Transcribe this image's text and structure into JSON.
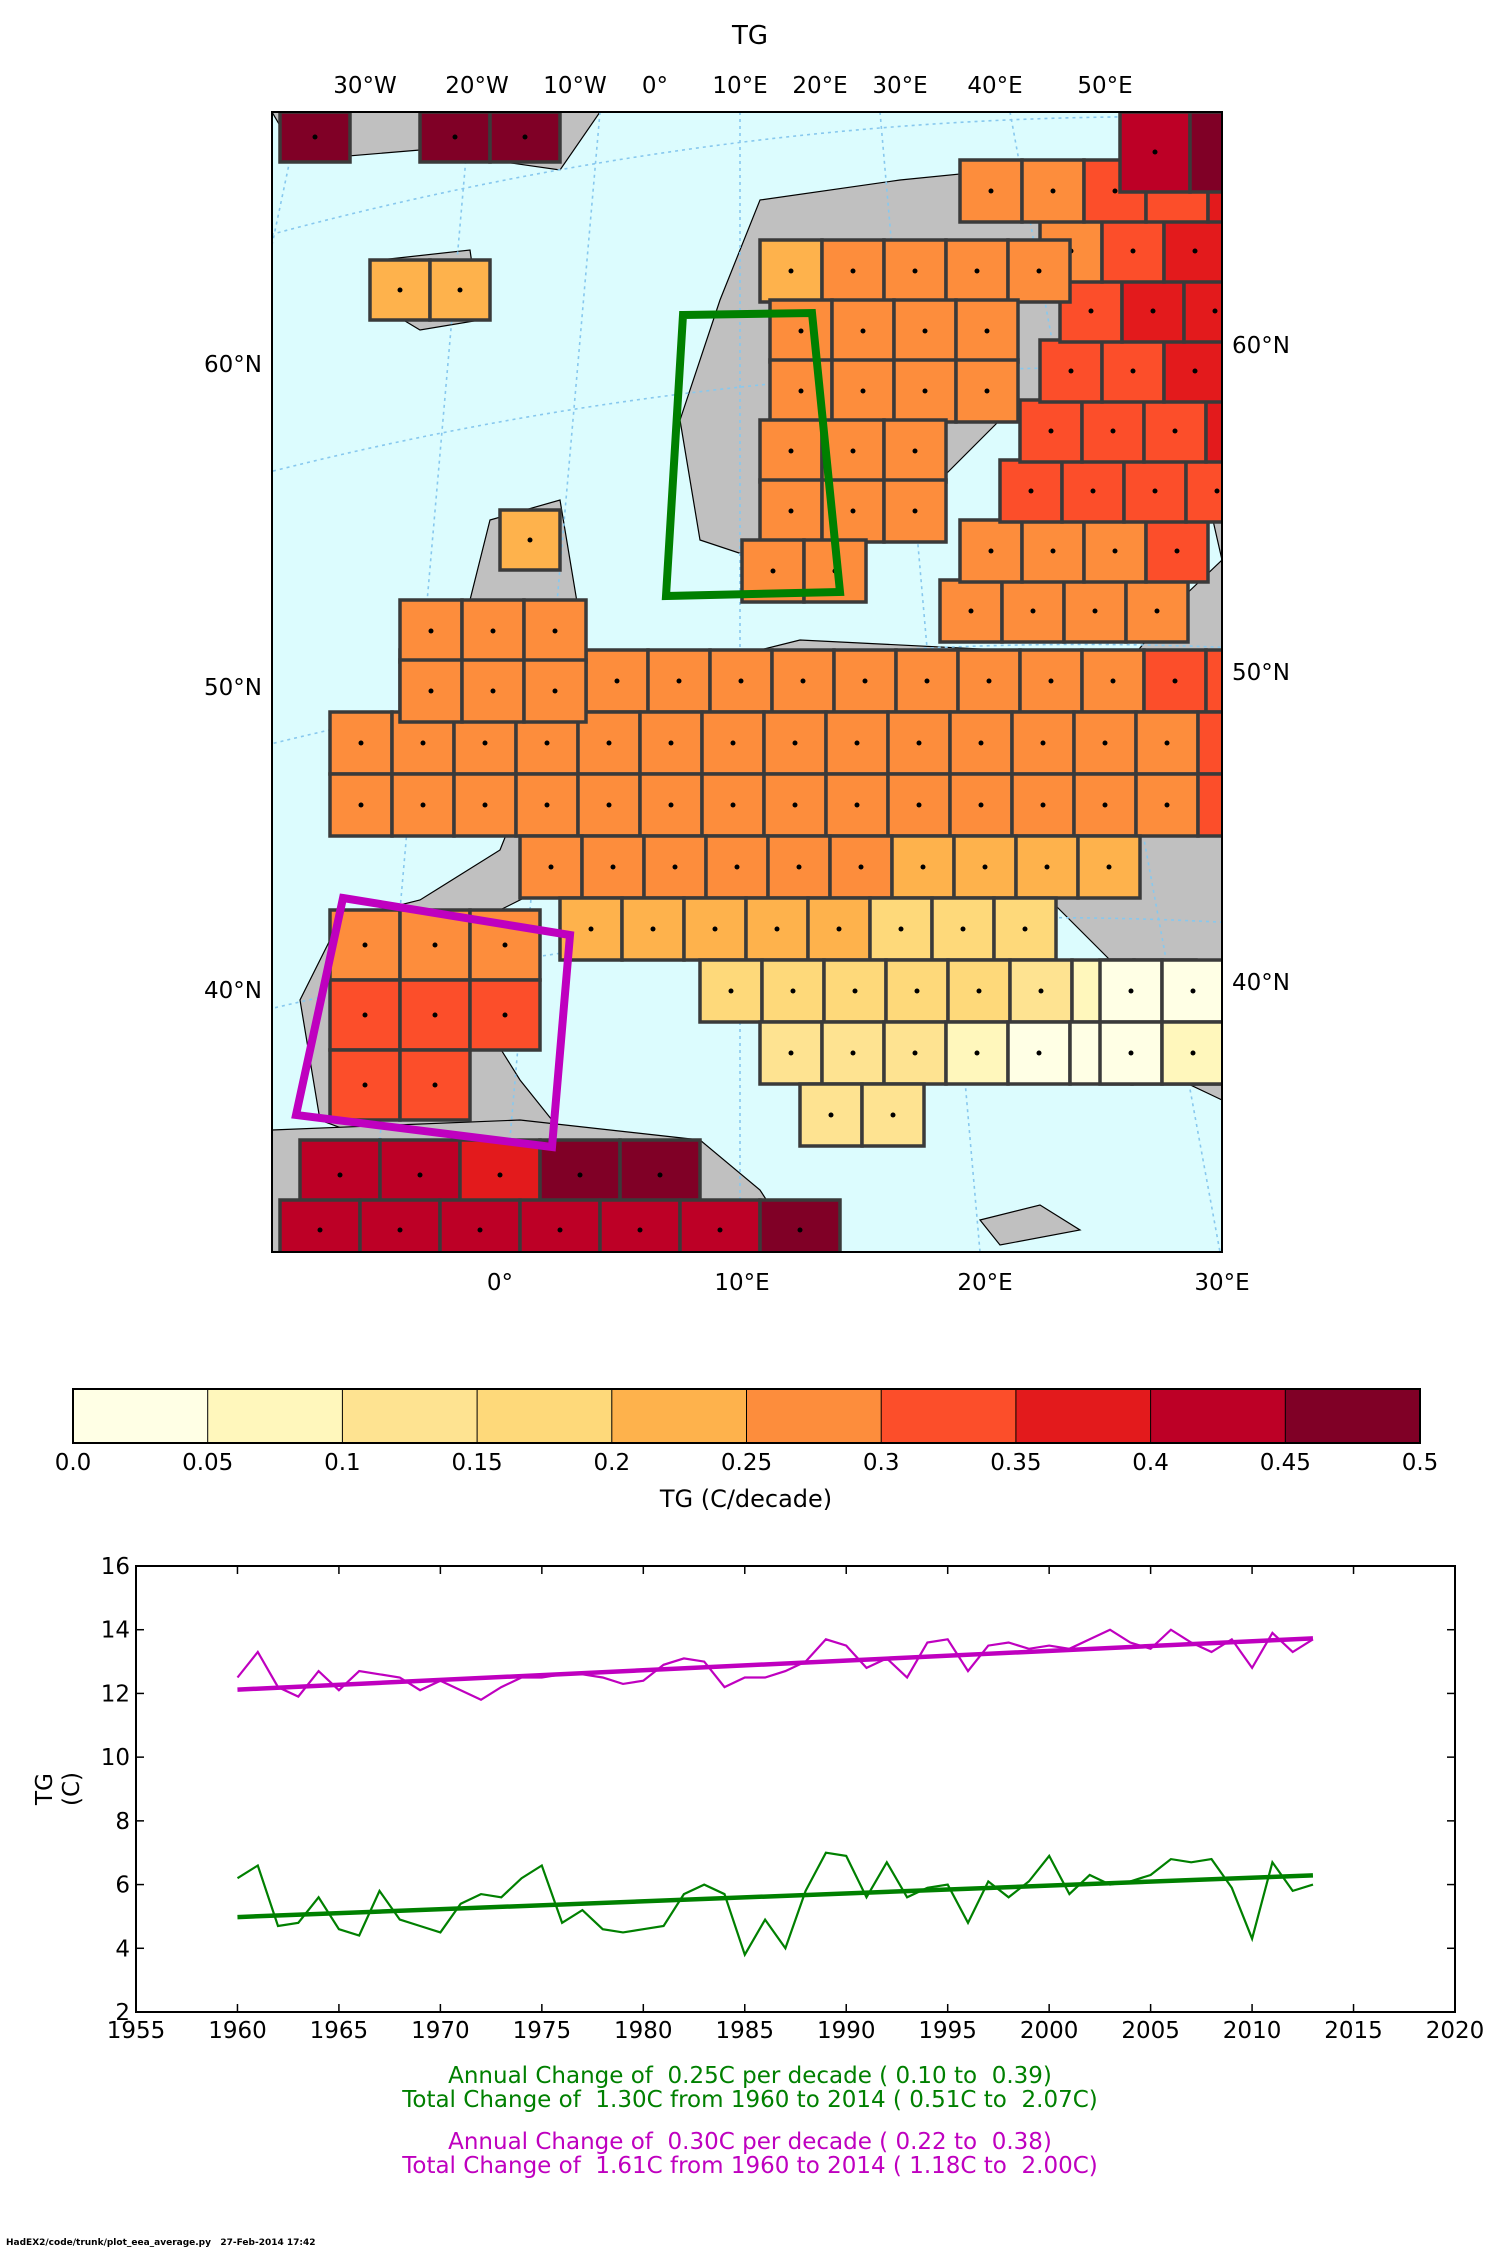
{
  "map": {
    "title": "TG",
    "top_lon_labels": [
      "30°W",
      "20°W",
      "10°W",
      "0°",
      "10°E",
      "20°E",
      "30°E",
      "40°E",
      "50°E"
    ],
    "bottom_lon_labels": [
      "0°",
      "10°E",
      "20°E",
      "30°E"
    ],
    "left_lat_labels": [
      "60°N",
      "50°N",
      "40°N"
    ],
    "right_lat_labels": [
      "60°N",
      "50°N",
      "40°N"
    ],
    "colors": {
      "ocean": "#dcfcfe",
      "land": "#c0c0c0",
      "grid_outline": "#3a3a3a",
      "graticule": "#87c8ee",
      "green_box": "#008000",
      "magenta_box": "#bf00bf"
    }
  },
  "colorbar": {
    "label": "TG (C/decade)",
    "ticks": [
      "0.0",
      "0.05",
      "0.1",
      "0.15",
      "0.2",
      "0.25",
      "0.3",
      "0.35",
      "0.4",
      "0.45",
      "0.5"
    ],
    "colors": [
      "#ffffe5",
      "#fff7bc",
      "#fee391",
      "#fed97a",
      "#feb24c",
      "#fd8d3c",
      "#fc4e2a",
      "#e31a1c",
      "#bd0026",
      "#800026"
    ]
  },
  "chart_data": {
    "type": "line",
    "ylabel": "TG\n(C)",
    "xlim": [
      1955,
      2020
    ],
    "ylim": [
      2,
      16
    ],
    "x_ticks": [
      1955,
      1960,
      1965,
      1970,
      1975,
      1980,
      1985,
      1990,
      1995,
      2000,
      2005,
      2010,
      2015,
      2020
    ],
    "y_ticks": [
      2,
      4,
      6,
      8,
      10,
      12,
      14,
      16
    ],
    "x": [
      1960,
      1961,
      1962,
      1963,
      1964,
      1965,
      1966,
      1967,
      1968,
      1969,
      1970,
      1971,
      1972,
      1973,
      1974,
      1975,
      1976,
      1977,
      1978,
      1979,
      1980,
      1981,
      1982,
      1983,
      1984,
      1985,
      1986,
      1987,
      1988,
      1989,
      1990,
      1991,
      1992,
      1993,
      1994,
      1995,
      1996,
      1997,
      1998,
      1999,
      2000,
      2001,
      2002,
      2003,
      2004,
      2005,
      2006,
      2007,
      2008,
      2009,
      2010,
      2011,
      2012,
      2013
    ],
    "series": [
      {
        "color": "#008000",
        "values": [
          6.2,
          6.6,
          4.7,
          4.8,
          5.6,
          4.6,
          4.4,
          5.8,
          4.9,
          4.7,
          4.5,
          5.4,
          5.7,
          5.6,
          6.2,
          6.6,
          4.8,
          5.2,
          4.6,
          4.5,
          4.6,
          4.7,
          5.7,
          6.0,
          5.7,
          3.8,
          4.9,
          4.0,
          5.8,
          7.0,
          6.9,
          5.6,
          6.7,
          5.6,
          5.9,
          6.0,
          4.8,
          6.1,
          5.6,
          6.1,
          6.9,
          5.7,
          6.3,
          6.0,
          6.1,
          6.3,
          6.8,
          6.7,
          6.8,
          5.9,
          4.3,
          6.7,
          5.8,
          6.0
        ],
        "trend": [
          4.98,
          6.29
        ]
      },
      {
        "color": "#bf00bf",
        "values": [
          12.5,
          13.3,
          12.2,
          11.9,
          12.7,
          12.1,
          12.7,
          12.6,
          12.5,
          12.1,
          12.4,
          12.1,
          11.8,
          12.2,
          12.5,
          12.5,
          12.6,
          12.6,
          12.5,
          12.3,
          12.4,
          12.9,
          13.1,
          13.0,
          12.2,
          12.5,
          12.5,
          12.7,
          13.0,
          13.7,
          13.5,
          12.8,
          13.1,
          12.5,
          13.6,
          13.7,
          12.7,
          13.5,
          13.6,
          13.4,
          13.5,
          13.4,
          13.7,
          14.0,
          13.6,
          13.4,
          14.0,
          13.6,
          13.3,
          13.7,
          12.8,
          13.9,
          13.3,
          13.7
        ],
        "trend": [
          12.12,
          13.73
        ]
      }
    ]
  },
  "stats": {
    "green": {
      "annual": "Annual Change of  0.25C per decade ( 0.10 to  0.39)",
      "total": "Total Change of  1.30C from 1960 to 2014 ( 0.51C to  2.07C)"
    },
    "magenta": {
      "annual": "Annual Change of  0.30C per decade ( 0.22 to  0.38)",
      "total": "Total Change of  1.61C from 1960 to 2014 ( 1.18C to  2.00C)"
    }
  },
  "footer": "HadEX2/code/trunk/plot_eea_average.py   27-Feb-2014 17:42"
}
